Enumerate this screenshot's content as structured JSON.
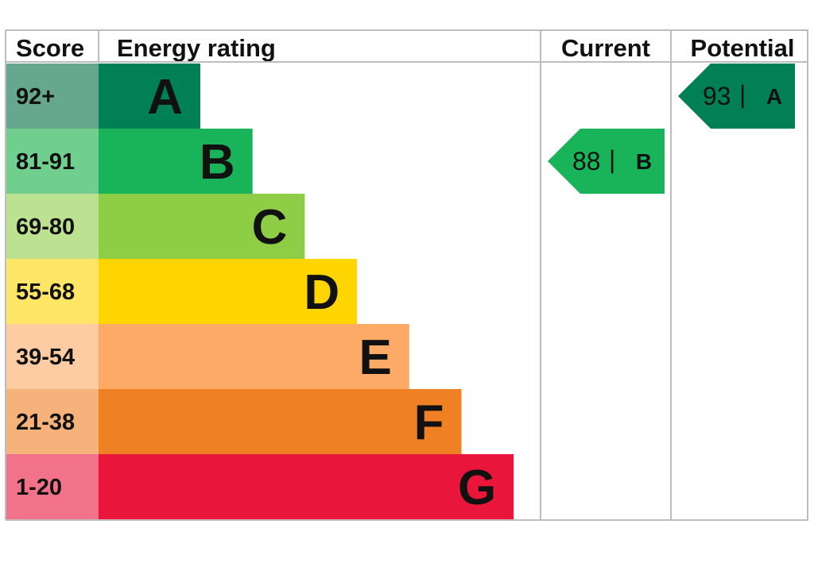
{
  "header": {
    "score": "Score",
    "energy_rating": "Energy rating",
    "current": "Current",
    "potential": "Potential"
  },
  "chart_data": {
    "type": "bar",
    "bands": [
      {
        "score": "92+",
        "letter": "A",
        "color": "#008054",
        "score_bg": "#66A88E"
      },
      {
        "score": "81-91",
        "letter": "B",
        "color": "#19B459",
        "score_bg": "#70CF8F"
      },
      {
        "score": "69-80",
        "letter": "C",
        "color": "#8DCE46",
        "score_bg": "#BCE291"
      },
      {
        "score": "55-68",
        "letter": "D",
        "color": "#FFD500",
        "score_bg": "#FFE666"
      },
      {
        "score": "39-54",
        "letter": "E",
        "color": "#FCAA65",
        "score_bg": "#FDCCA3"
      },
      {
        "score": "21-38",
        "letter": "F",
        "color": "#EF8023",
        "score_bg": "#F5B27B"
      },
      {
        "score": "1-20",
        "letter": "G",
        "color": "#E9153B",
        "score_bg": "#F27389"
      }
    ],
    "current": {
      "value": "88",
      "letter": "B",
      "separator": "|",
      "color": "#19B459"
    },
    "potential": {
      "value": "93",
      "letter": "A",
      "separator": "|",
      "color": "#008054"
    }
  }
}
